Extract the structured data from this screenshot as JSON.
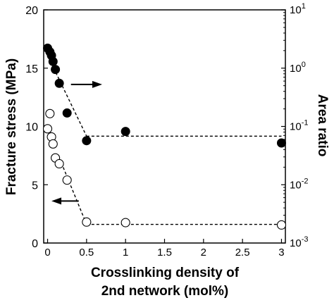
{
  "chart_data": {
    "type": "scatter",
    "xlabel_lines": [
      "Crosslinking density of",
      "2nd network (mol%)"
    ],
    "ylabel_left": "Fracture stress (MPa)",
    "ylabel_right": "Area ratio",
    "xlim": [
      -0.05,
      3.05
    ],
    "ylim_left": [
      0,
      20
    ],
    "ylim_right": [
      0.001,
      10
    ],
    "yscale_right": "log",
    "x_ticks": [
      0,
      0.5,
      1,
      1.5,
      2,
      2.5,
      3
    ],
    "x_tick_labels": [
      "0",
      "0.5",
      "1",
      "1.5",
      "2",
      "2.5",
      "3"
    ],
    "y_left_ticks": [
      0,
      5,
      10,
      15,
      20
    ],
    "y_left_tick_labels": [
      "0",
      "5",
      "10",
      "15",
      "20"
    ],
    "y_right_ticks": [
      {
        "base": "10",
        "exp": "-3",
        "value": 0.001
      },
      {
        "base": "10",
        "exp": "-2",
        "value": 0.01
      },
      {
        "base": "10",
        "exp": "-1",
        "value": 0.1
      },
      {
        "base": "10",
        "exp": "0",
        "value": 1
      },
      {
        "base": "10",
        "exp": "1",
        "value": 10
      }
    ],
    "grid": false,
    "series": [
      {
        "axis": "right",
        "marker": "filled-circle",
        "color": "#000000",
        "x": [
          0.0,
          0.03,
          0.05,
          0.07,
          0.1,
          0.15,
          0.25,
          0.5,
          1.0,
          3.0
        ],
        "y": [
          2.2,
          1.9,
          1.65,
          1.3,
          0.95,
          0.55,
          0.17,
          0.057,
          0.082,
          0.052
        ]
      },
      {
        "axis": "left",
        "marker": "open-circle",
        "color": "#000000",
        "x": [
          0.0,
          0.03,
          0.05,
          0.07,
          0.1,
          0.15,
          0.25,
          0.5,
          1.0,
          3.0
        ],
        "y": [
          9.8,
          11.1,
          9.1,
          8.5,
          7.3,
          6.8,
          5.4,
          1.8,
          1.75,
          1.55
        ]
      }
    ],
    "fit_lines": [
      {
        "axis": "right",
        "x": [
          0.05,
          0.5
        ],
        "y": [
          1.2,
          0.068
        ]
      },
      {
        "axis": "right",
        "x": [
          0.5,
          3.0
        ],
        "y": [
          0.068,
          0.068
        ]
      },
      {
        "axis": "left",
        "x": [
          0.2,
          0.5
        ],
        "y": [
          6.5,
          1.6
        ]
      },
      {
        "axis": "left",
        "x": [
          0.5,
          3.0
        ],
        "y": [
          1.6,
          1.6
        ]
      }
    ],
    "arrows": [
      {
        "from": [
          0.3,
          13.6
        ],
        "to": [
          0.7,
          13.6
        ]
      },
      {
        "from": [
          0.4,
          3.6
        ],
        "to": [
          0.05,
          3.6
        ]
      }
    ]
  }
}
